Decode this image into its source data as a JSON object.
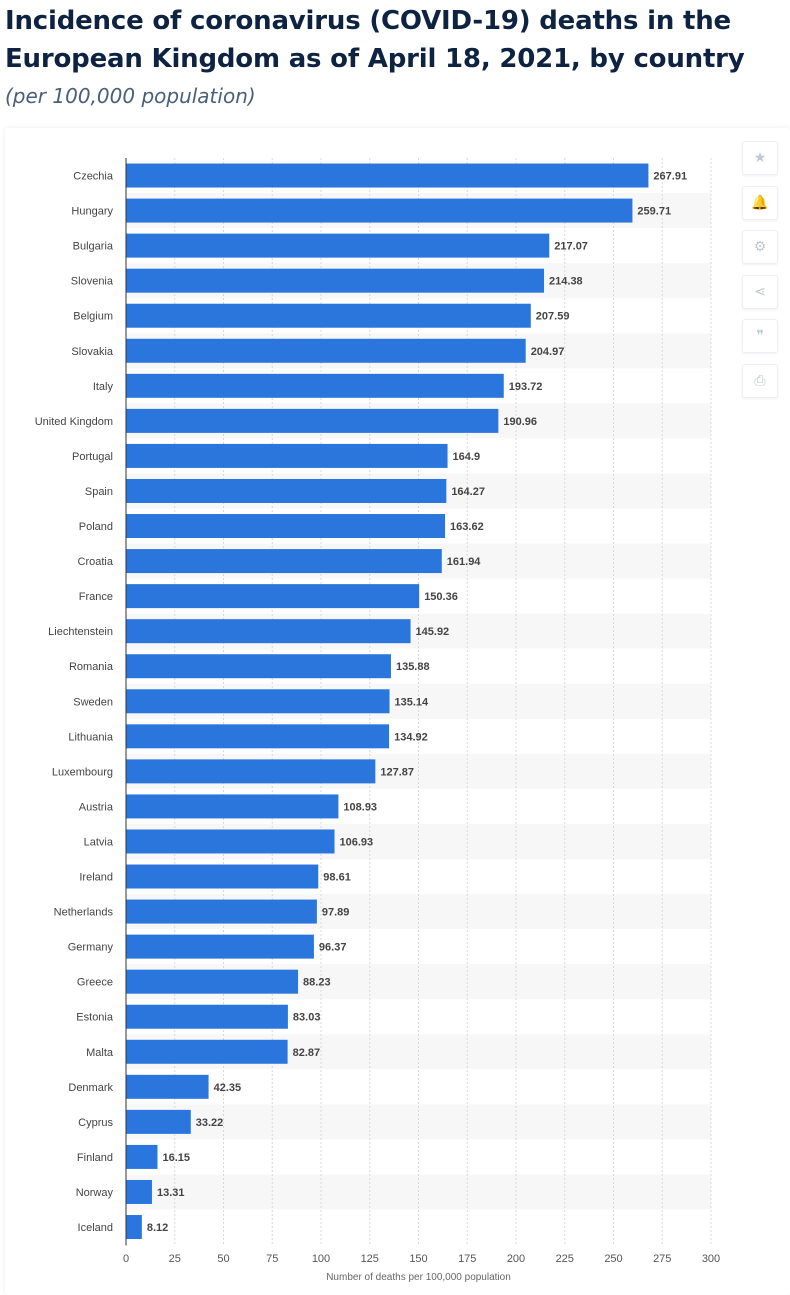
{
  "header": {
    "title": "Incidence of coronavirus (COVID-19) deaths in the European Kingdom as of April 18, 2021, by country",
    "subtitle": "(per 100,000 population)"
  },
  "toolbar": {
    "buttons": [
      {
        "name": "favorite-star-icon",
        "glyph": "★"
      },
      {
        "name": "notification-bell-icon",
        "glyph": "🔔"
      },
      {
        "name": "settings-gear-icon",
        "glyph": "⚙"
      },
      {
        "name": "share-icon",
        "glyph": "⋖"
      },
      {
        "name": "cite-quote-icon",
        "glyph": "❞"
      },
      {
        "name": "print-icon",
        "glyph": "⎙"
      }
    ]
  },
  "colors": {
    "bar": "#2a76dd",
    "stripe": "#f7f7f7",
    "grid": "#d8d8d8",
    "axis": "#333333",
    "label": "#444444"
  },
  "chart_data": {
    "type": "bar",
    "orientation": "horizontal",
    "categories": [
      "Czechia",
      "Hungary",
      "Bulgaria",
      "Slovenia",
      "Belgium",
      "Slovakia",
      "Italy",
      "United Kingdom",
      "Portugal",
      "Spain",
      "Poland",
      "Croatia",
      "France",
      "Liechtenstein",
      "Romania",
      "Sweden",
      "Lithuania",
      "Luxembourg",
      "Austria",
      "Latvia",
      "Ireland",
      "Netherlands",
      "Germany",
      "Greece",
      "Estonia",
      "Malta",
      "Denmark",
      "Cyprus",
      "Finland",
      "Norway",
      "Iceland"
    ],
    "values": [
      267.91,
      259.71,
      217.07,
      214.38,
      207.59,
      204.97,
      193.72,
      190.96,
      164.9,
      164.27,
      163.62,
      161.94,
      150.36,
      145.92,
      135.88,
      135.14,
      134.92,
      127.87,
      108.93,
      106.93,
      98.61,
      97.89,
      96.37,
      88.23,
      83.03,
      82.87,
      42.35,
      33.22,
      16.15,
      13.31,
      8.12
    ],
    "value_labels": [
      "267.91",
      "259.71",
      "217.07",
      "214.38",
      "207.59",
      "204.97",
      "193.72",
      "190.96",
      "164.9",
      "164.27",
      "163.62",
      "161.94",
      "150.36",
      "145.92",
      "135.88",
      "135.14",
      "134.92",
      "127.87",
      "108.93",
      "106.93",
      "98.61",
      "97.89",
      "96.37",
      "88.23",
      "83.03",
      "82.87",
      "42.35",
      "33.22",
      "16.15",
      "13.31",
      "8.12"
    ],
    "xlabel": "Number of deaths per 100,000 population",
    "ylabel": "",
    "xlim": [
      0,
      300
    ],
    "xticks": [
      0,
      25,
      50,
      75,
      100,
      125,
      150,
      175,
      200,
      225,
      250,
      275,
      300
    ],
    "grid": true,
    "legend": "none"
  }
}
